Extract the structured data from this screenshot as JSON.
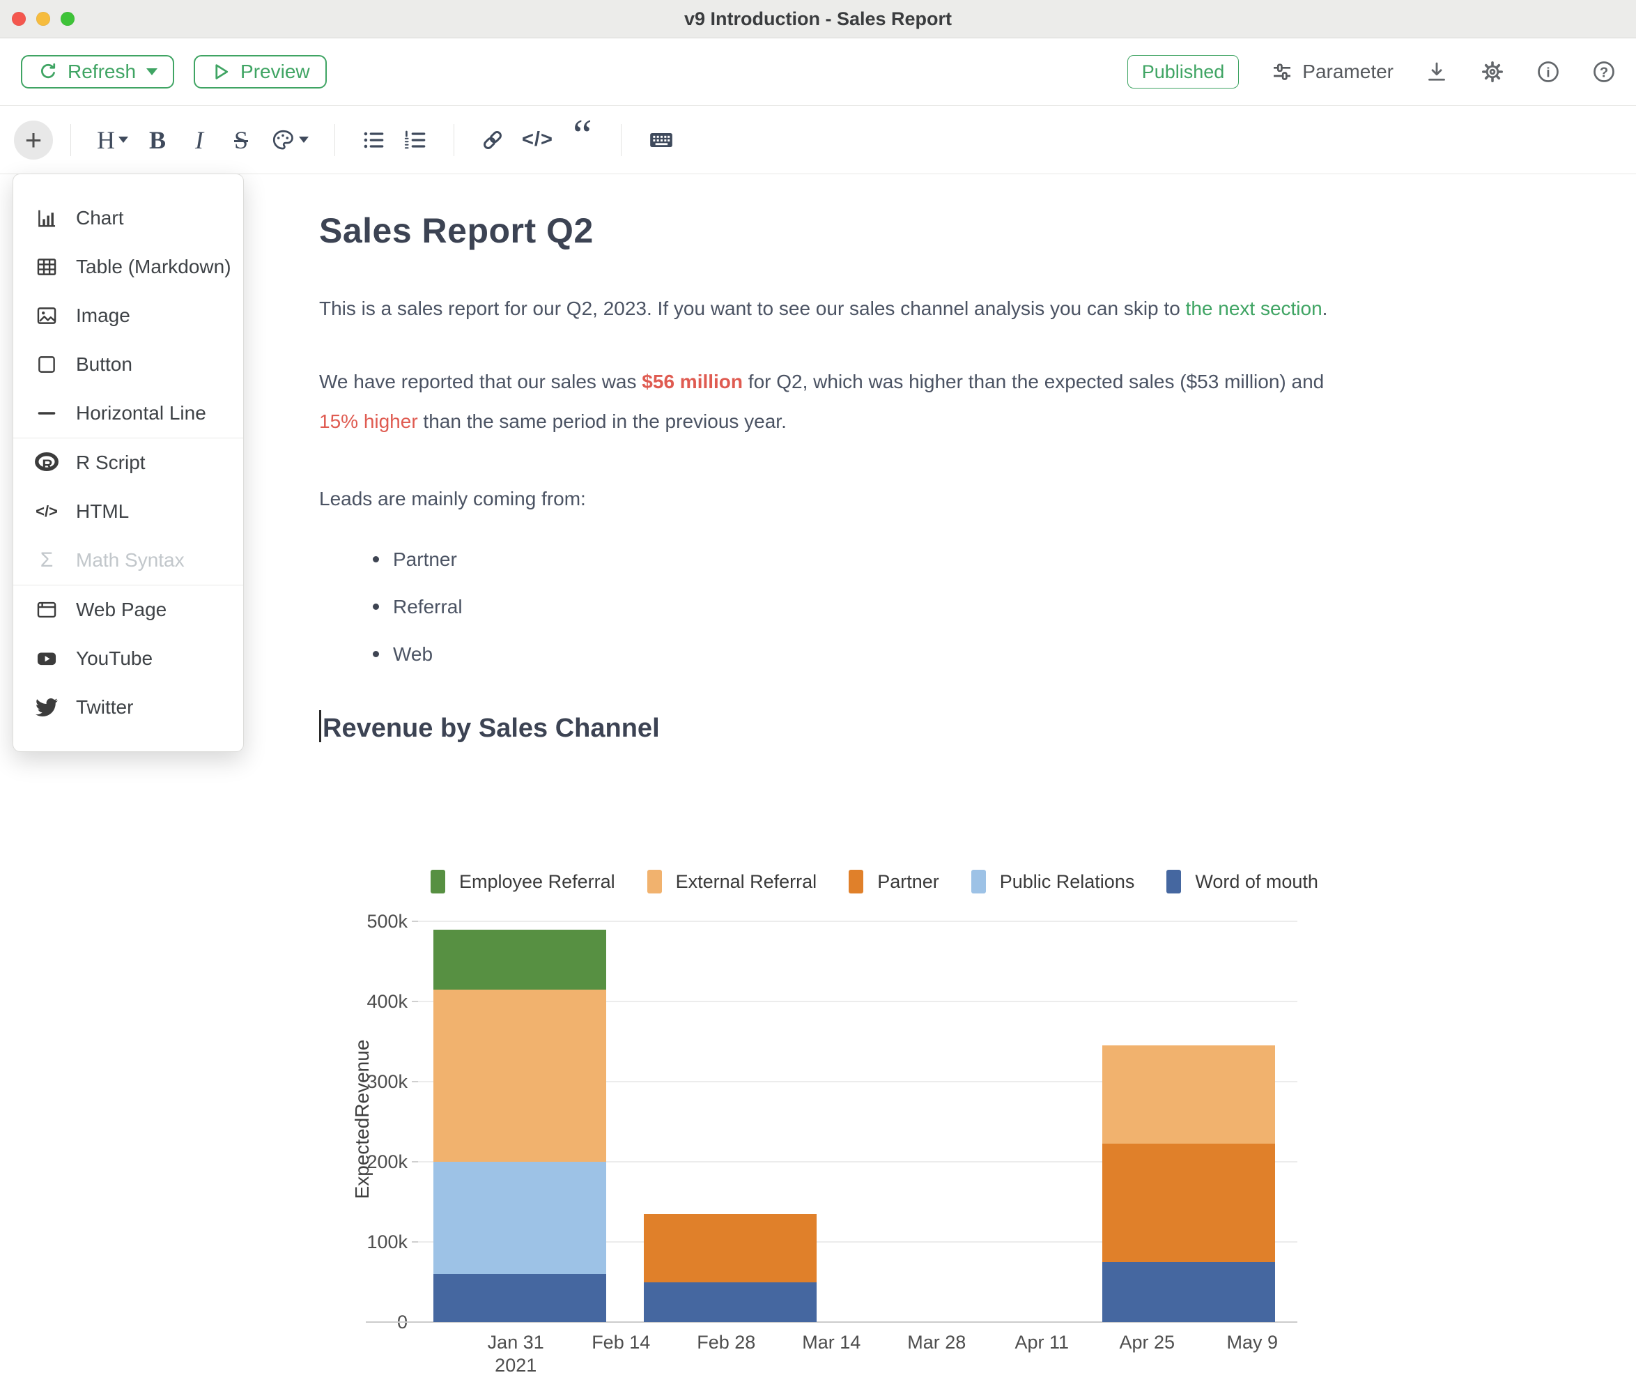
{
  "theme": {
    "accent_green": "#3fa463",
    "red": "#df5b51",
    "heading_color": "#3c4353",
    "body_text_color": "#4b5363",
    "toolbar_icon_color": "#3f4a5c"
  },
  "window": {
    "title": "v9 Introduction - Sales Report"
  },
  "toolbar": {
    "refresh": "Refresh",
    "preview": "Preview",
    "published": "Published",
    "parameter": "Parameter"
  },
  "formatbar": {
    "plus": "+",
    "heading": "H",
    "bold": "B",
    "italic": "I",
    "strike": "S",
    "code": "</>",
    "quote": "“"
  },
  "icons": {
    "info": "i",
    "help": "?",
    "r_logo": "R",
    "sigma": "Σ",
    "menu_code": "</>"
  },
  "menu": {
    "group1": [
      {
        "label": "Chart"
      },
      {
        "label": "Table (Markdown)"
      },
      {
        "label": "Image"
      },
      {
        "label": "Button"
      },
      {
        "label": "Horizontal Line"
      }
    ],
    "group2": [
      {
        "label": "R Script"
      },
      {
        "label": "HTML"
      },
      {
        "label": "Math Syntax"
      }
    ],
    "group3": [
      {
        "label": "Web Page"
      },
      {
        "label": "YouTube"
      },
      {
        "label": "Twitter"
      }
    ]
  },
  "doc": {
    "title": "Sales Report Q2",
    "p1_part1": "This is a sales report for our Q2, 2023. If you want to see our sales channel analysis you can skip to ",
    "p1_link": "the next section",
    "p1_part2": ".",
    "p2_part1": "We have reported that our sales was ",
    "p2_strong": "$56 million",
    "p2_part2": " for Q2, which was higher than the expected sales ($53 million) and ",
    "p2_em": "15% higher",
    "p2_part3": " than the same period in the previous year.",
    "p3": "Leads are mainly coming from:",
    "bullets": [
      "Partner",
      "Referral",
      "Web"
    ],
    "h2": "Revenue by Sales Channel"
  },
  "chart_data": {
    "type": "bar",
    "stacked": true,
    "title": "",
    "xlabel": "",
    "ylabel": "ExpectedRevenue",
    "ylim": [
      0,
      500000
    ],
    "grid": true,
    "legend_position": "top",
    "yticks": [
      {
        "label": "0",
        "value": 0
      },
      {
        "label": "100k",
        "value": 100000
      },
      {
        "label": "200k",
        "value": 200000
      },
      {
        "label": "300k",
        "value": 300000
      },
      {
        "label": "400k",
        "value": 400000
      },
      {
        "label": "500k",
        "value": 500000
      }
    ],
    "x_domain": [
      "2021-01-18",
      "2021-05-15"
    ],
    "x_ticks": [
      {
        "label": "Jan 31",
        "sub": "2021",
        "date": "2021-01-31"
      },
      {
        "label": "Feb 14",
        "date": "2021-02-14"
      },
      {
        "label": "Feb 28",
        "date": "2021-02-28"
      },
      {
        "label": "Mar 14",
        "date": "2021-03-14"
      },
      {
        "label": "Mar 28",
        "date": "2021-03-28"
      },
      {
        "label": "Apr 11",
        "date": "2021-04-11"
      },
      {
        "label": "Apr 25",
        "date": "2021-04-25"
      },
      {
        "label": "May 9",
        "date": "2021-05-09"
      }
    ],
    "legend": [
      {
        "name": "Employee Referral",
        "color": "#579042"
      },
      {
        "name": "External Referral",
        "color": "#f1b26e"
      },
      {
        "name": "Partner",
        "color": "#e0802a"
      },
      {
        "name": "Public Relations",
        "color": "#9dc2e6"
      },
      {
        "name": "Word of mouth",
        "color": "#4567a0"
      }
    ],
    "bars": [
      {
        "start": "2021-01-20",
        "end": "2021-02-12",
        "segments": [
          {
            "series": "Word of mouth",
            "value": 60000
          },
          {
            "series": "Public Relations",
            "value": 140000
          },
          {
            "series": "External Referral",
            "value": 215000
          },
          {
            "series": "Employee Referral",
            "value": 75000
          }
        ]
      },
      {
        "start": "2021-02-17",
        "end": "2021-03-12",
        "segments": [
          {
            "series": "Word of mouth",
            "value": 50000
          },
          {
            "series": "Partner",
            "value": 85000
          }
        ]
      },
      {
        "start": "2021-04-19",
        "end": "2021-05-12",
        "segments": [
          {
            "series": "Word of mouth",
            "value": 75000
          },
          {
            "series": "Partner",
            "value": 148000
          },
          {
            "series": "External Referral",
            "value": 122000
          }
        ]
      }
    ]
  }
}
